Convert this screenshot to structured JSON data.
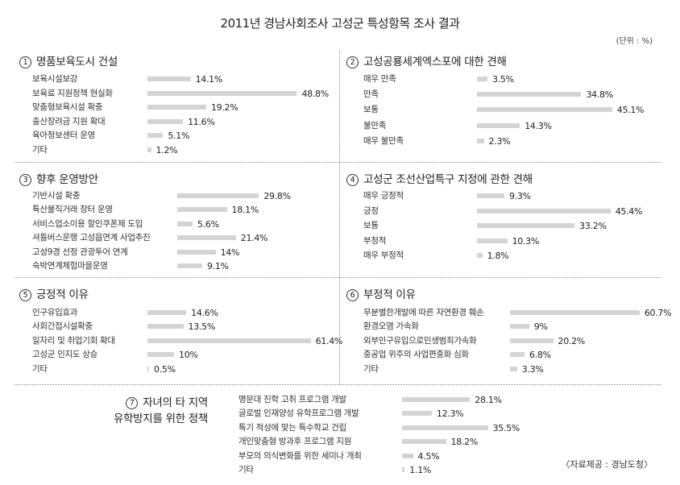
{
  "title": "2011년 경남사회조사 고성군 특성항목 조사 결과",
  "unit": "(단위 : %)",
  "source": "〈자료제공 : 경남도청〉",
  "colors": {
    "bar": "#d4d4d4",
    "text": "#2a2a2a",
    "separator": "#8a8a8a"
  },
  "chart_data": [
    {
      "type": "bar",
      "num": "1",
      "title": "명품보육도시 건설",
      "categories": [
        "보육시설보강",
        "보육료 지원정책 현실화",
        "맞춤형보육시설 확충",
        "출산장려금 지원 확대",
        "육아정보센터 운영",
        "기타"
      ],
      "values": [
        14.1,
        48.8,
        19.2,
        11.6,
        5.1,
        1.2
      ],
      "value_labels": [
        "14.1%",
        "48.8%",
        "19.2%",
        "11.6%",
        "5.1%",
        "1.2%"
      ]
    },
    {
      "type": "bar",
      "num": "2",
      "title": "고성공룡세계엑스포에 대한 견해",
      "categories": [
        "매우 만족",
        "만족",
        "보통",
        "불만족",
        "매우 불만족"
      ],
      "values": [
        3.5,
        34.8,
        45.1,
        14.3,
        2.3
      ],
      "value_labels": [
        "3.5%",
        "34.8%",
        "45.1%",
        "14.3%",
        "2.3%"
      ]
    },
    {
      "type": "bar",
      "num": "3",
      "title": "향후 운영방안",
      "categories": [
        "기반시설 확충",
        "특산물직거래 장터 운영",
        "서비스업소이용 할인쿠폰제 도입",
        "셔틀버스운행 고성읍연계 사업추진",
        "고성9경 선정 관광투어 연계",
        "숙박연계체험마을운영"
      ],
      "values": [
        29.8,
        18.1,
        5.6,
        21.4,
        14,
        9.1
      ],
      "value_labels": [
        "29.8%",
        "18.1%",
        "5.6%",
        "21.4%",
        "14%",
        "9.1%"
      ]
    },
    {
      "type": "bar",
      "num": "4",
      "title": "고성군 조선산업특구 지정에 관한 견해",
      "categories": [
        "매우 긍정적",
        "긍정",
        "보통",
        "부정적",
        "매우 부정적"
      ],
      "values": [
        9.3,
        45.4,
        33.2,
        10.3,
        1.8
      ],
      "value_labels": [
        "9.3%",
        "45.4%",
        "33.2%",
        "10.3%",
        "1.8%"
      ]
    },
    {
      "type": "bar",
      "num": "5",
      "title": "긍정적 이유",
      "categories": [
        "인구유입효과",
        "사회간접시설확충",
        "일자리 및 취업기회 확대",
        "고성군 인지도 상승",
        "기타"
      ],
      "values": [
        14.6,
        13.5,
        61.4,
        10,
        0.5
      ],
      "value_labels": [
        "14.6%",
        "13.5%",
        "61.4%",
        "10%",
        "0.5%"
      ]
    },
    {
      "type": "bar",
      "num": "6",
      "title": "부정적 이유",
      "categories": [
        "무분별한개발에 따른 자연환경 훼손",
        "환경오염 가속화",
        "외부인구유입으로민생범죄가속화",
        "중공업 위주의 사업편중화 심화",
        "기타"
      ],
      "values": [
        60.7,
        9,
        20.2,
        6.8,
        3.3
      ],
      "value_labels": [
        "60.7%",
        "9%",
        "20.2%",
        "6.8%",
        "3.3%"
      ]
    },
    {
      "type": "bar",
      "num": "7",
      "title_line1": "자녀의 타 지역",
      "title_line2": "유학방지를 위한 정책",
      "categories": [
        "명문대 진학 고취 프로그램 개발",
        "글로벌 인재양성 유학프로그램 개발",
        "특기 적성에 맞는 특수학교 건립",
        "개인맞춤형 방과후 프로그램 지원",
        "부모의 의식변화를 위한 세미나 개최",
        "기타"
      ],
      "values": [
        28.1,
        12.3,
        35.5,
        18.2,
        4.5,
        1.1
      ],
      "value_labels": [
        "28.1%",
        "12.3%",
        "35.5%",
        "18.2%",
        "4.5%",
        "1.1%"
      ]
    }
  ]
}
